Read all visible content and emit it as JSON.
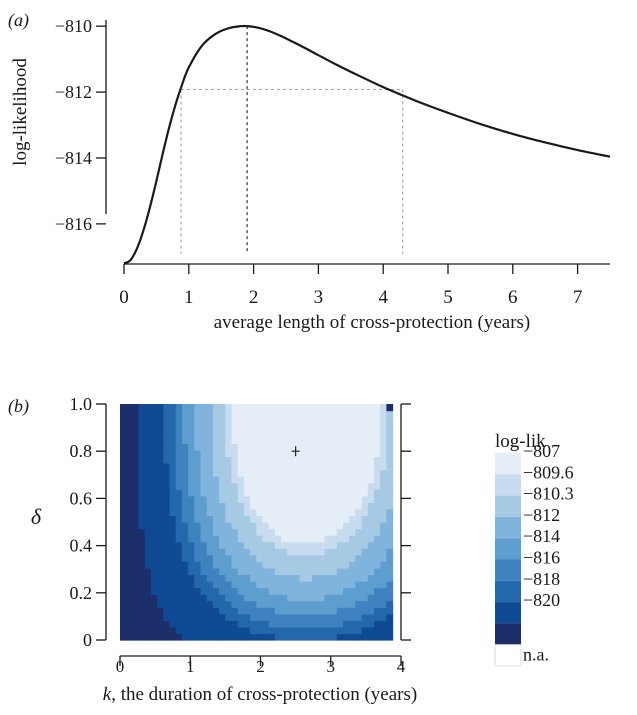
{
  "chart_data": [
    {
      "type": "line",
      "panel_label": "(a)",
      "xlabel": "average length of cross-protection (years)",
      "ylabel": "log-likelihood",
      "xlim": [
        0,
        7.5
      ],
      "ylim": [
        -817.4,
        -809.6
      ],
      "xticks": [
        0,
        1,
        2,
        3,
        4,
        5,
        6,
        7
      ],
      "yticks": [
        -810,
        -812,
        -814,
        -816
      ],
      "ytick_labels": [
        "−810",
        "−812",
        "−814",
        "−816"
      ],
      "series": [
        {
          "x": [
            0,
            0.1,
            0.2,
            0.3,
            0.4,
            0.5,
            0.6,
            0.7,
            0.8,
            0.9,
            1.0,
            1.2,
            1.4,
            1.6,
            1.8,
            1.9,
            2.0,
            2.2,
            2.4,
            2.6,
            2.8,
            3.0,
            3.3,
            3.6,
            4.0,
            4.3,
            4.6,
            5.0,
            5.5,
            6.0,
            6.5,
            7.0,
            7.5
          ],
          "y": [
            -817.2,
            -817.1,
            -816.75,
            -816.2,
            -815.5,
            -814.7,
            -813.85,
            -813.05,
            -812.35,
            -811.75,
            -811.25,
            -810.6,
            -810.25,
            -810.07,
            -810.0,
            -810.0,
            -810.02,
            -810.12,
            -810.28,
            -810.47,
            -810.67,
            -810.88,
            -811.19,
            -811.48,
            -811.85,
            -812.1,
            -812.34,
            -812.63,
            -812.97,
            -813.27,
            -813.53,
            -813.76,
            -813.96
          ]
        }
      ],
      "annotations": {
        "mle_x": 1.9,
        "mle_y": -810,
        "ci_level": -811.92,
        "ci_low": 0.88,
        "ci_high": 4.3
      }
    },
    {
      "type": "heatmap",
      "panel_label": "(b)",
      "xlabel_k": "k",
      "xlabel_rest": ", the duration of cross-protection (years)",
      "ylabel": "δ",
      "xlim": [
        0,
        4
      ],
      "ylim": [
        0,
        1
      ],
      "xticks": [
        0,
        1,
        2,
        3,
        4
      ],
      "yticks": [
        0,
        0.2,
        0.4,
        0.6,
        0.8,
        1.0
      ],
      "ytick_labels": [
        "0",
        "0.2",
        "0.4",
        "0.6",
        "0.8",
        "1.0"
      ],
      "legend_title": "log-lik",
      "legend": [
        {
          "label": "−807",
          "color": "#e5eef7"
        },
        {
          "label": "−809.6",
          "color": "#c9dbee"
        },
        {
          "label": "−810.3",
          "color": "#a7cae4"
        },
        {
          "label": "−812",
          "color": "#80b4dc"
        },
        {
          "label": "−814",
          "color": "#5d9ecf"
        },
        {
          "label": "−816",
          "color": "#3e83c0"
        },
        {
          "label": "−818",
          "color": "#2468ac"
        },
        {
          "label": "−820",
          "color": "#0f4a94"
        },
        {
          "label": "",
          "color": "#1d2f6b"
        },
        {
          "label": "n.a.",
          "color": "#ffffff"
        }
      ],
      "max_point": {
        "k": 2.5,
        "delta": 0.8
      }
    }
  ]
}
